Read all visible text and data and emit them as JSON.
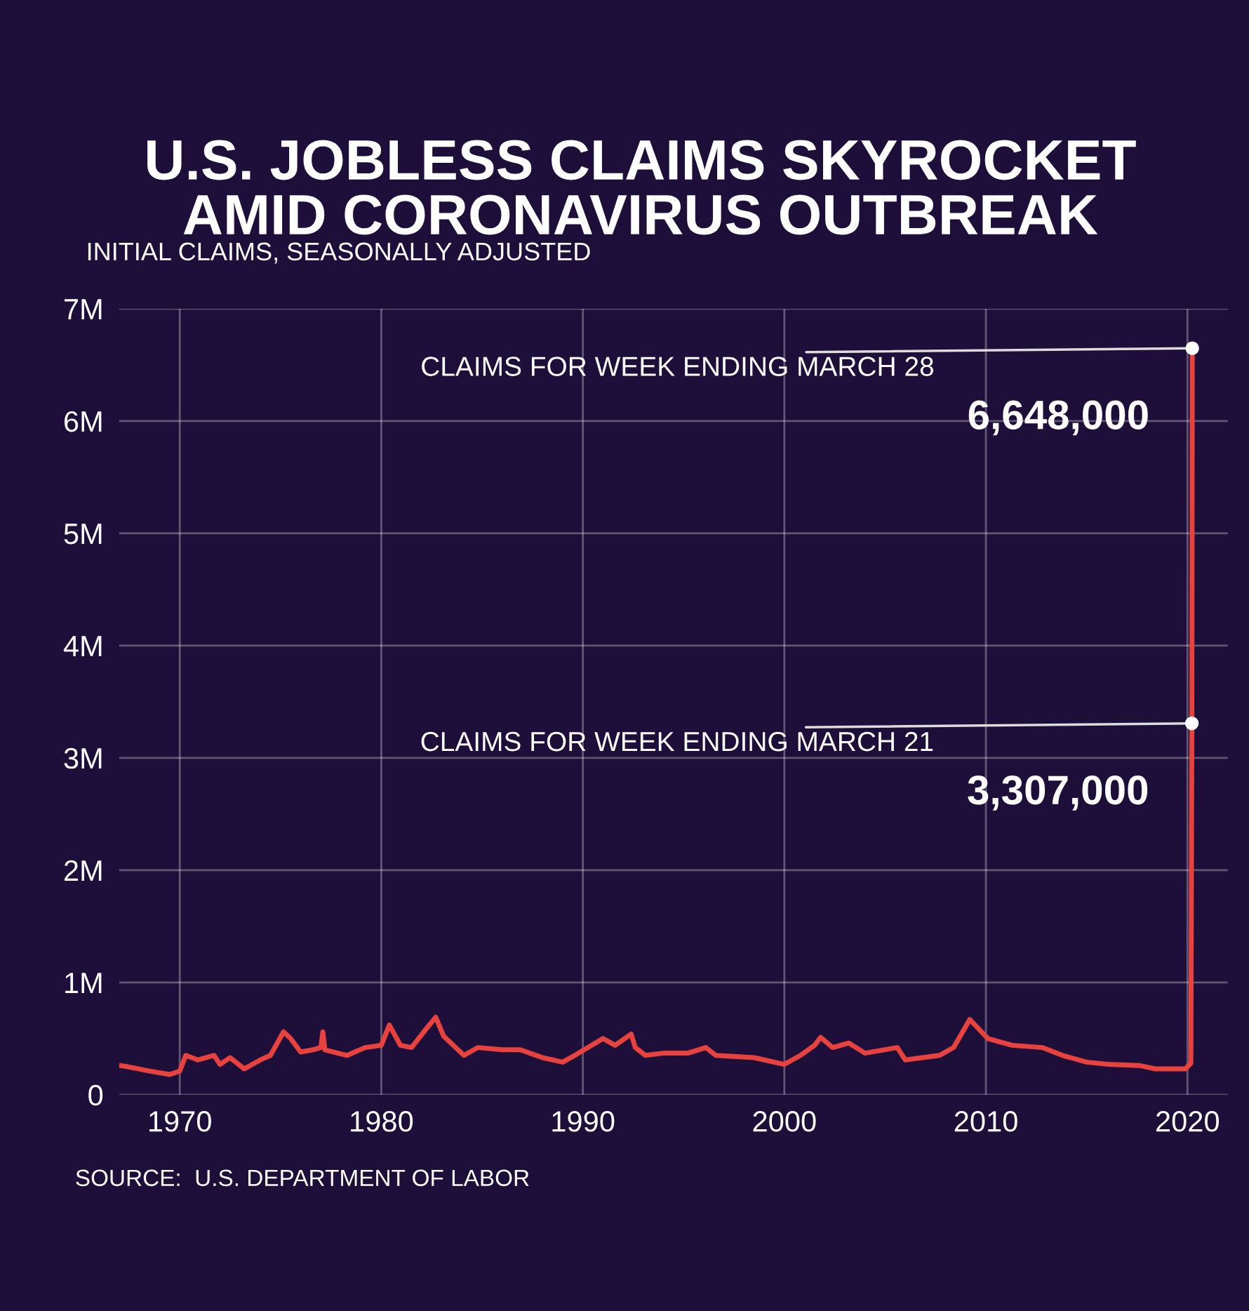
{
  "chart_data": {
    "type": "line",
    "title": "U.S. JOBLESS CLAIMS SKYROCKET\nAMID CORONAVIRUS OUTBREAK",
    "ylabel": "INITIAL CLAIMS, SEASONALLY ADJUSTED",
    "x": [
      1967.0,
      1967.4,
      1968.5,
      1969.5,
      1970.0,
      1970.3,
      1970.9,
      1971.7,
      1972.0,
      1972.5,
      1973.2,
      1974.0,
      1974.5,
      1975.15,
      1975.5,
      1976.0,
      1976.6,
      1977.0,
      1977.1,
      1977.2,
      1978.3,
      1979.2,
      1980.0,
      1980.4,
      1980.95,
      1981.5,
      1982.2,
      1982.7,
      1983.1,
      1984.1,
      1984.8,
      1986.0,
      1986.9,
      1988.0,
      1989.0,
      1989.6,
      1991.0,
      1991.6,
      1992.4,
      1992.6,
      1993.1,
      1994.0,
      1995.2,
      1996.1,
      1996.6,
      1998.5,
      2000.0,
      2000.8,
      2001.5,
      2001.8,
      2002.4,
      2003.2,
      2004.0,
      2005.6,
      2006.0,
      2007.7,
      2008.4,
      2009.2,
      2010.1,
      2011.3,
      2012.8,
      2013.8,
      2015.0,
      2016.1,
      2017.6,
      2018.4,
      2019.9,
      2020.17,
      2020.22,
      2020.24
    ],
    "series": [
      {
        "color": "#e8423f",
        "values": [
          260000,
          250000,
          210000,
          180000,
          210000,
          350000,
          310000,
          350000,
          270000,
          330000,
          230000,
          310000,
          350000,
          560000,
          500000,
          380000,
          400000,
          420000,
          560000,
          400000,
          350000,
          420000,
          440000,
          620000,
          440000,
          420000,
          580000,
          690000,
          520000,
          350000,
          420000,
          400000,
          400000,
          330000,
          290000,
          350000,
          500000,
          440000,
          540000,
          420000,
          350000,
          370000,
          370000,
          420000,
          350000,
          330000,
          270000,
          350000,
          440000,
          510000,
          420000,
          460000,
          370000,
          420000,
          310000,
          350000,
          420000,
          670000,
          500000,
          440000,
          420000,
          350000,
          290000,
          270000,
          260000,
          230000,
          230000,
          280000,
          3307000,
          6648000
        ],
        "value_labels": [
          null,
          null,
          null,
          null,
          null,
          null,
          null,
          null,
          null,
          null,
          null,
          null,
          null,
          null,
          null,
          null,
          null,
          null,
          null,
          null,
          null,
          null,
          null,
          null,
          null,
          null,
          null,
          null,
          null,
          null,
          null,
          null,
          null,
          null,
          null,
          null,
          null,
          null,
          null,
          null,
          null,
          null,
          null,
          null,
          null,
          null,
          null,
          null,
          null,
          null,
          null,
          null,
          null,
          null,
          null,
          null,
          null,
          null,
          null,
          null,
          null,
          null,
          null,
          null,
          null,
          null,
          null,
          null,
          "3,307,000",
          "6,648,000"
        ]
      }
    ],
    "annotations": [
      {
        "text": "CLAIMS FOR WEEK ENDING MARCH 21",
        "x": 2020.22,
        "y": 3307000
      },
      {
        "text": "CLAIMS FOR WEEK ENDING MARCH 28",
        "x": 2020.24,
        "y": 6648000
      },
      "SOURCE:  U.S. DEPARTMENT OF LABOR"
    ],
    "xlim": [
      1967,
      2022
    ],
    "xticks": [
      1970,
      1980,
      1990,
      2000,
      2010,
      2020
    ],
    "ylim": [
      0,
      7000000
    ],
    "yticks": [
      0,
      {
        "value": 1000000,
        "label": "1M"
      },
      {
        "value": 2000000,
        "label": "2M"
      },
      {
        "value": 3000000,
        "label": "3M"
      },
      {
        "value": 4000000,
        "label": "4M"
      },
      {
        "value": 5000000,
        "label": "5M"
      },
      {
        "value": 6000000,
        "label": "6M"
      },
      {
        "value": 7000000,
        "label": "7M"
      }
    ],
    "grid": true
  }
}
